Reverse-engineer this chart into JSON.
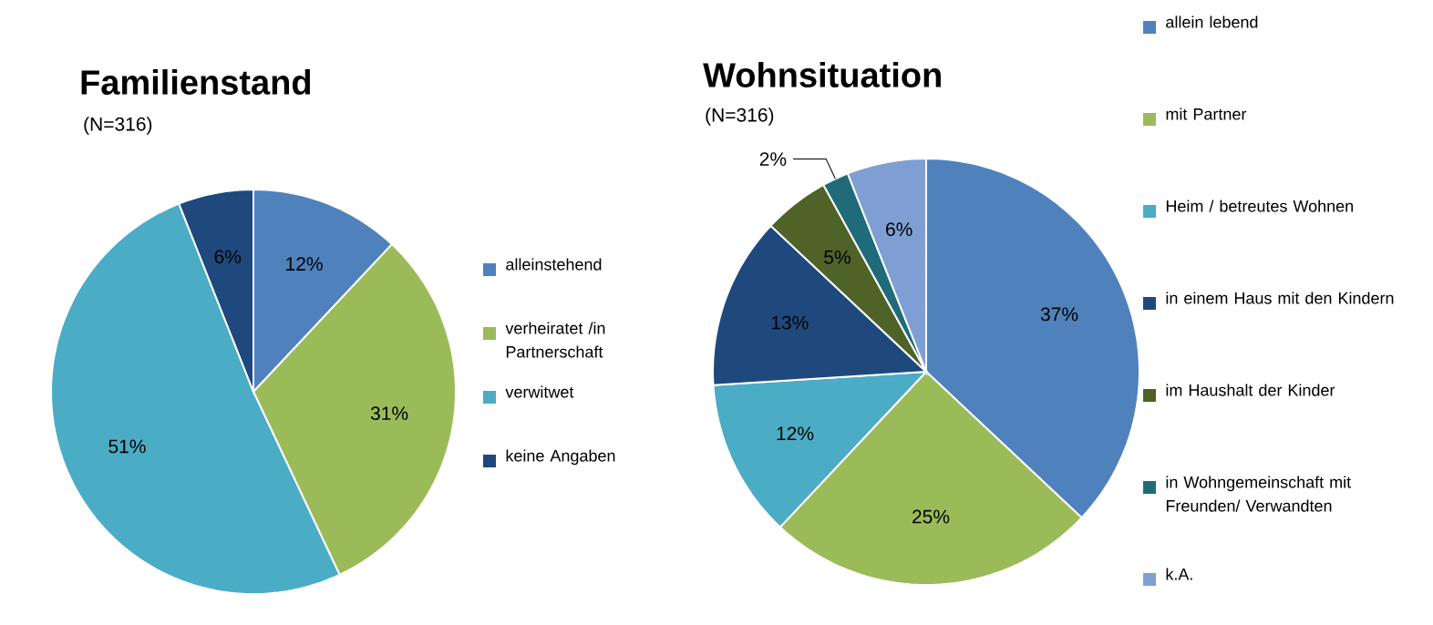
{
  "chart_data": [
    {
      "type": "pie",
      "title": "Familienstand",
      "subtitle": "(N=316)",
      "categories": [
        "alleinstehend",
        "verheiratet /in Partnerschaft",
        "verwitwet",
        "keine Angaben"
      ],
      "values": [
        12,
        31,
        51,
        6
      ],
      "value_labels": [
        "12%",
        "31%",
        "51%",
        "6%"
      ],
      "colors": [
        "#4f81bd",
        "#9bbb59",
        "#4bacc6",
        "#1f497d"
      ],
      "legend": "right"
    },
    {
      "type": "pie",
      "title": "Wohnsituation",
      "subtitle": "(N=316)",
      "categories": [
        "allein lebend",
        "mit Partner",
        "Heim / betreutes Wohnen",
        "in einem Haus mit den Kindern",
        "im Haushalt der Kinder",
        "in Wohngemeinschaft mit Freunden/ Verwandten",
        "k.A."
      ],
      "values": [
        37,
        25,
        12,
        13,
        5,
        2,
        6
      ],
      "value_labels": [
        "37%",
        "25%",
        "12%",
        "13%",
        "5%",
        "2%",
        "6%"
      ],
      "colors": [
        "#4f81bd",
        "#9bbb59",
        "#4bacc6",
        "#1f497d",
        "#4f6228",
        "#1f6b7a",
        "#7f9fd4"
      ],
      "legend": "right"
    }
  ]
}
